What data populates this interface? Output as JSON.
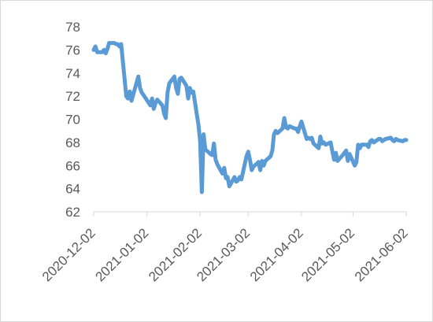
{
  "chart_data": {
    "type": "line",
    "title": "",
    "xlabel": "",
    "ylabel": "",
    "ylim": [
      62,
      78
    ],
    "y_ticks": [
      62,
      64,
      66,
      68,
      70,
      72,
      74,
      76,
      78
    ],
    "x_ticks": [
      "2020-12-02",
      "2021-01-02",
      "2021-02-02",
      "2021-03-02",
      "2021-04-02",
      "2021-05-02",
      "2021-06-02"
    ],
    "grid": false,
    "legend": "none",
    "line_color": "#5b9bd5",
    "series": [
      {
        "x": [
          "2020-12-02",
          "2020-12-03",
          "2020-12-04",
          "2020-12-07",
          "2020-12-08",
          "2020-12-09",
          "2020-12-10",
          "2020-12-11",
          "2020-12-14",
          "2020-12-15",
          "2020-12-16",
          "2020-12-17",
          "2020-12-18",
          "2020-12-21",
          "2020-12-22",
          "2020-12-23",
          "2020-12-24",
          "2020-12-28",
          "2020-12-29",
          "2020-12-30",
          "2020-12-31",
          "2021-01-04",
          "2021-01-05",
          "2021-01-06",
          "2021-01-07",
          "2021-01-08",
          "2021-01-11",
          "2021-01-12",
          "2021-01-13",
          "2021-01-14",
          "2021-01-15",
          "2021-01-18",
          "2021-01-19",
          "2021-01-20",
          "2021-01-21",
          "2021-01-22",
          "2021-01-25",
          "2021-01-26",
          "2021-01-27",
          "2021-01-28",
          "2021-01-29",
          "2021-02-01",
          "2021-02-02",
          "2021-02-03",
          "2021-02-04",
          "2021-02-05",
          "2021-02-08",
          "2021-02-09",
          "2021-02-10",
          "2021-02-11",
          "2021-02-12",
          "2021-02-15",
          "2021-02-16",
          "2021-02-17",
          "2021-02-18",
          "2021-02-19",
          "2021-02-22",
          "2021-02-23",
          "2021-02-24",
          "2021-02-25",
          "2021-02-26",
          "2021-03-01",
          "2021-03-02",
          "2021-03-03",
          "2021-03-04",
          "2021-03-05",
          "2021-03-08",
          "2021-03-09",
          "2021-03-10",
          "2021-03-11",
          "2021-03-12",
          "2021-03-15",
          "2021-03-16",
          "2021-03-17",
          "2021-03-18",
          "2021-03-19",
          "2021-03-22",
          "2021-03-23",
          "2021-03-24",
          "2021-03-25",
          "2021-03-26",
          "2021-03-29",
          "2021-03-30",
          "2021-03-31",
          "2021-04-01",
          "2021-04-02",
          "2021-04-05",
          "2021-04-06",
          "2021-04-07",
          "2021-04-08",
          "2021-04-09",
          "2021-04-12",
          "2021-04-13",
          "2021-04-14",
          "2021-04-15",
          "2021-04-16",
          "2021-04-19",
          "2021-04-20",
          "2021-04-21",
          "2021-04-22",
          "2021-04-23",
          "2021-04-26",
          "2021-04-27",
          "2021-04-28",
          "2021-04-29",
          "2021-04-30",
          "2021-05-03",
          "2021-05-04",
          "2021-05-05",
          "2021-05-06",
          "2021-05-07",
          "2021-05-10",
          "2021-05-11",
          "2021-05-12",
          "2021-05-13",
          "2021-05-14",
          "2021-05-17",
          "2021-05-18",
          "2021-05-19",
          "2021-05-20",
          "2021-05-21",
          "2021-05-24",
          "2021-05-25",
          "2021-05-26",
          "2021-05-27",
          "2021-05-28",
          "2021-05-31",
          "2021-06-01",
          "2021-06-02"
        ],
        "y": [
          76.0,
          76.3,
          75.8,
          75.8,
          76.0,
          75.7,
          76.1,
          76.6,
          76.6,
          76.5,
          76.5,
          76.3,
          76.5,
          72.0,
          71.8,
          72.4,
          71.6,
          73.7,
          72.7,
          72.3,
          72.1,
          71.2,
          71.8,
          70.9,
          71.4,
          71.7,
          71.2,
          70.5,
          70.1,
          72.3,
          73.1,
          73.7,
          72.7,
          72.2,
          73.5,
          73.6,
          72.9,
          71.8,
          72.7,
          72.3,
          72.4,
          69.5,
          68.1,
          63.7,
          68.7,
          67.4,
          67.0,
          66.9,
          67.9,
          66.5,
          66.1,
          65.3,
          65.8,
          64.9,
          65.0,
          64.2,
          65.0,
          64.6,
          64.7,
          65.0,
          64.8,
          66.8,
          67.2,
          66.5,
          65.6,
          65.9,
          66.3,
          65.6,
          66.4,
          66.0,
          66.4,
          66.8,
          67.3,
          68.7,
          69.0,
          68.8,
          69.2,
          70.1,
          69.3,
          69.2,
          69.4,
          69.2,
          69.2,
          68.9,
          69.4,
          69.8,
          68.3,
          68.4,
          68.3,
          68.4,
          67.9,
          67.5,
          68.5,
          67.9,
          68.0,
          67.8,
          68.0,
          67.2,
          66.5,
          67.1,
          66.4,
          66.9,
          67.1,
          67.3,
          66.4,
          67.0,
          66.0,
          66.3,
          67.8,
          67.5,
          67.8,
          67.8,
          67.6,
          68.1,
          68.2,
          68.0,
          68.3,
          68.3,
          68.1,
          68.2,
          68.3,
          68.4,
          68.2,
          68.1,
          68.3,
          68.2,
          68.1,
          68.2,
          68.2
        ]
      }
    ]
  }
}
